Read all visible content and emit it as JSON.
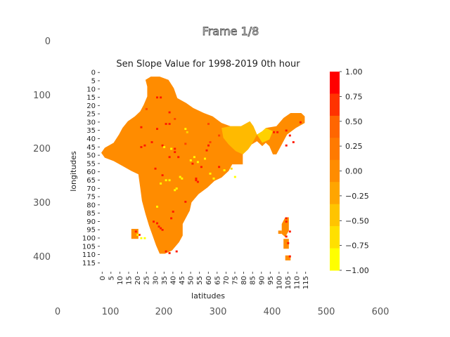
{
  "frame_title": "Frame 1/8",
  "outer_axes": {
    "x_ticks": [
      "0",
      "100",
      "200",
      "300",
      "400",
      "500",
      "600"
    ],
    "y_ticks": [
      "0",
      "100",
      "200",
      "300",
      "400"
    ]
  },
  "chart_data": {
    "type": "heatmap",
    "title": "Sen Slope Value for 1998-2019 0th hour",
    "xlabel": "latitudes",
    "ylabel": "longitudes",
    "x_tick_labels": [
      "0",
      "5",
      "10",
      "15",
      "20",
      "25",
      "30",
      "35",
      "40",
      "45",
      "50",
      "55",
      "60",
      "65",
      "70",
      "75",
      "80",
      "85",
      "90",
      "95",
      "100",
      "105",
      "110",
      "115"
    ],
    "y_tick_labels": [
      "0",
      "5",
      "10",
      "15",
      "20",
      "25",
      "30",
      "35",
      "40",
      "45",
      "50",
      "55",
      "60",
      "65",
      "70",
      "75",
      "80",
      "85",
      "90",
      "95",
      "100",
      "105",
      "110",
      "115"
    ],
    "grid_size": [
      120,
      120
    ],
    "colorbar": {
      "min": -1.0,
      "max": 1.0,
      "ticks": [
        "1.00",
        "0.75",
        "0.50",
        "0.25",
        "0.00",
        "−0.25",
        "−0.50",
        "−0.75",
        "−1.00"
      ],
      "colors_high_to_low": [
        "#ff0000",
        "#ff3300",
        "#ff6600",
        "#ff7a00",
        "#ff8c00",
        "#ffa500",
        "#ffc400",
        "#ffe000",
        "#ffff00"
      ]
    },
    "dominant_value": 0.0,
    "dominant_color": "#ff8c00",
    "no_data_color": "#ffffff",
    "grid": false
  }
}
